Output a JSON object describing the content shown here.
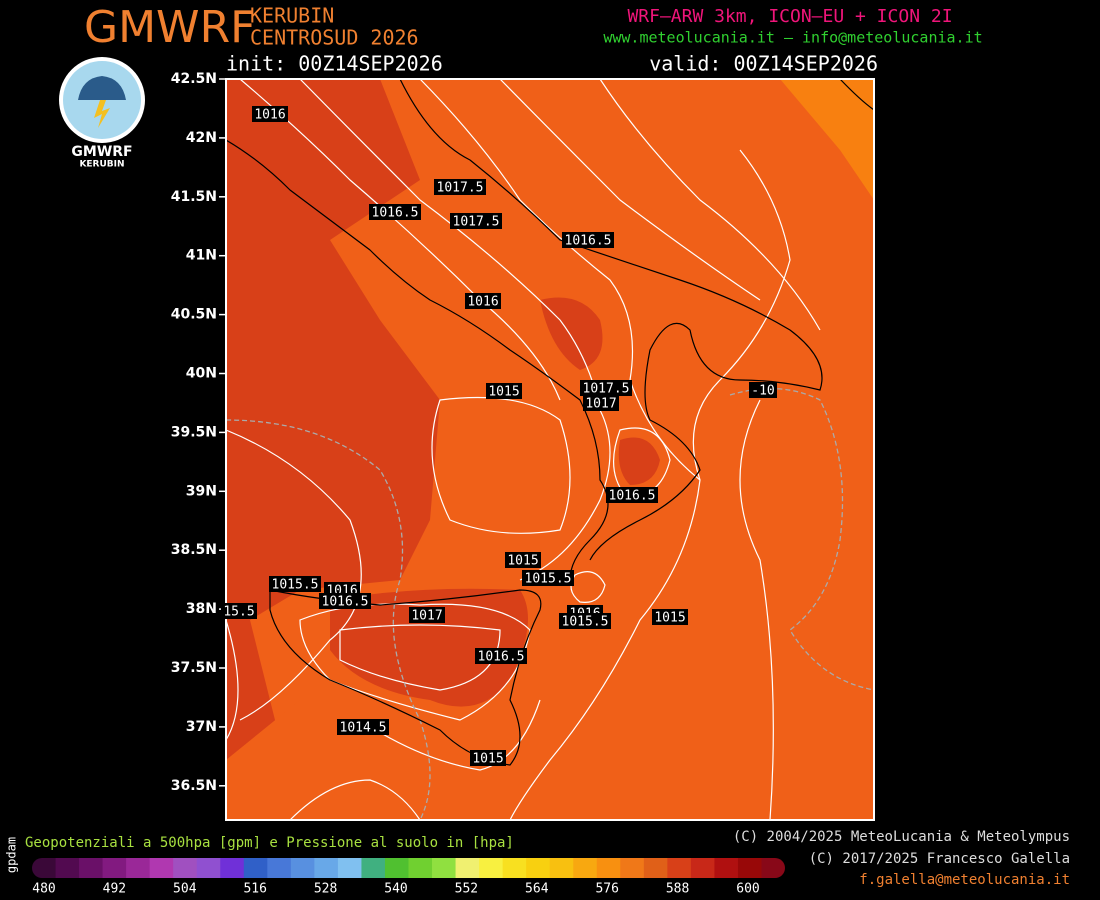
{
  "header": {
    "logo_title": "GMWRF",
    "model_line1": "KERUBIN",
    "model_line2": "CENTROSUD 2026",
    "sources": "WRF–ARW 3km, ICON–EU + ICON 2I",
    "contacts": "www.meteolucania.it – info@meteolucania.it",
    "init": "init: 00Z14SEP2026",
    "valid": "valid: 00Z14SEP2026"
  },
  "logo": {
    "title": "GMWRF",
    "subtitle": "KERUBIN"
  },
  "map": {
    "lat_labels": [
      "42.5N",
      "42N",
      "41.5N",
      "41N",
      "40.5N",
      "40N",
      "39.5N",
      "39N",
      "38.5N",
      "38N",
      "37.5N",
      "37N",
      "36.5N"
    ],
    "contour_labels": [
      "1016",
      "1017.5",
      "1016.5",
      "1017.5",
      "1016.5",
      "1016",
      "1015",
      "1017.5",
      "1017",
      "-10",
      "1016.5",
      "1015",
      "1015.5",
      "1015.5",
      "1016",
      "1016.5",
      "15.5",
      "1017",
      "1016",
      "1015.5",
      "1015",
      "1016.5",
      "1014.5",
      "1015"
    ]
  },
  "legend": {
    "unit": "gpdam",
    "description": "Geopotenziali a 500hpa [gpm] e Pressione al suolo in [hpa]",
    "labels": [
      "480",
      "492",
      "504",
      "516",
      "528",
      "540",
      "552",
      "564",
      "576",
      "588",
      "600"
    ]
  },
  "footer": {
    "copyright1": "(C) 2004/2025 MeteoLucania & Meteolympus",
    "copyright2": "(C) 2017/2025 Francesco Galella",
    "email": "f.galella@meteolucania.it"
  }
}
